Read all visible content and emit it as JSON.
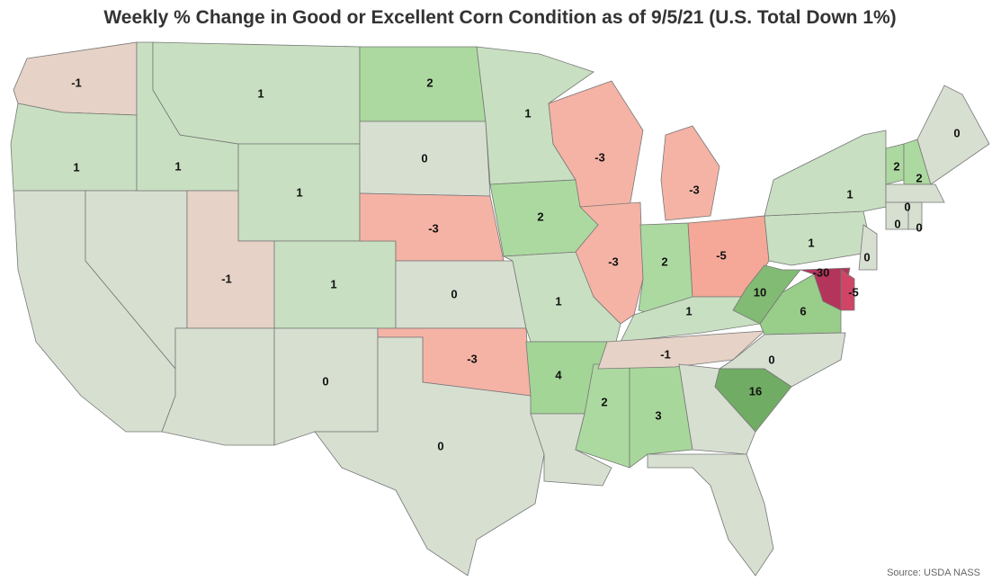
{
  "map": {
    "title": "Weekly % Change in Good or Excellent Corn Condition as of 9/5/21 (U.S. Total Down 1%)",
    "source": "Source: USDA NASS",
    "regions": [
      {
        "value": -1,
        "color": "#e6d2c6"
      },
      {
        "value": 1,
        "color": "#c8e0c1"
      },
      {
        "value": null,
        "color": "#d7dfd1"
      },
      {
        "value": null,
        "color": "#d7dfd1"
      },
      {
        "value": 1,
        "color": "#c8e0c1"
      },
      {
        "value": 1,
        "color": "#c8e0c1"
      },
      {
        "value": 1,
        "color": "#c8e0c1"
      },
      {
        "value": -1,
        "color": "#e6d2c6"
      },
      {
        "value": 1,
        "color": "#c8e0c1"
      },
      {
        "value": null,
        "color": "#d7dfd1"
      },
      {
        "value": 0,
        "color": "#d7dfd1"
      },
      {
        "value": 2,
        "color": "#acd9a0"
      },
      {
        "value": 0,
        "color": "#d7dfd1"
      },
      {
        "value": -3,
        "color": "#f5b3a5"
      },
      {
        "value": 0,
        "color": "#d7dfd1"
      },
      {
        "value": -3,
        "color": "#f5b3a5"
      },
      {
        "value": 0,
        "color": "#d7dfd1"
      },
      {
        "value": 1,
        "color": "#c8e0c1"
      },
      {
        "value": 2,
        "color": "#acd9a0"
      },
      {
        "value": 1,
        "color": "#c8e0c1"
      },
      {
        "value": 4,
        "color": "#a3d596"
      },
      {
        "value": null,
        "color": "#d7dfd1"
      },
      {
        "value": 2,
        "color": "#acd9a0"
      },
      {
        "value": 3,
        "color": "#a8d79b"
      },
      {
        "value": -3,
        "color": "#f5b3a5"
      },
      {
        "value": -3,
        "color": "#f5b3a5"
      },
      {
        "value": -3,
        "color": "#f5b3a5"
      },
      {
        "value": 2,
        "color": "#acd9a0"
      },
      {
        "value": -5,
        "color": "#f5a898"
      },
      {
        "value": 1,
        "color": "#c8e0c1"
      },
      {
        "value": -1,
        "color": "#e6d2c6"
      },
      {
        "value": 10,
        "color": "#82bb73"
      },
      {
        "value": 6,
        "color": "#98cd8a"
      },
      {
        "value": 0,
        "color": "#d7dfd1"
      },
      {
        "value": 16,
        "color": "#70ac63"
      },
      {
        "value": null,
        "color": "#d7dfd1"
      },
      {
        "value": null,
        "color": "#d7dfd1"
      },
      {
        "value": 1,
        "color": "#c8e0c1"
      },
      {
        "value": 1,
        "color": "#c8e0c1"
      },
      {
        "value": 2,
        "color": "#acd9a0"
      },
      {
        "value": 2,
        "color": "#acd9a0"
      },
      {
        "value": 0,
        "color": "#d7dfd1"
      },
      {
        "value": 0,
        "color": "#d7dfd1"
      },
      {
        "value": 0,
        "color": "#d7dfd1"
      },
      {
        "value": 0,
        "color": "#d7dfd1"
      },
      {
        "value": 0,
        "color": "#d7dfd1"
      },
      {
        "value": -30,
        "color": "#b3355c"
      },
      {
        "value": -5,
        "color": "#d04565"
      }
    ]
  }
}
